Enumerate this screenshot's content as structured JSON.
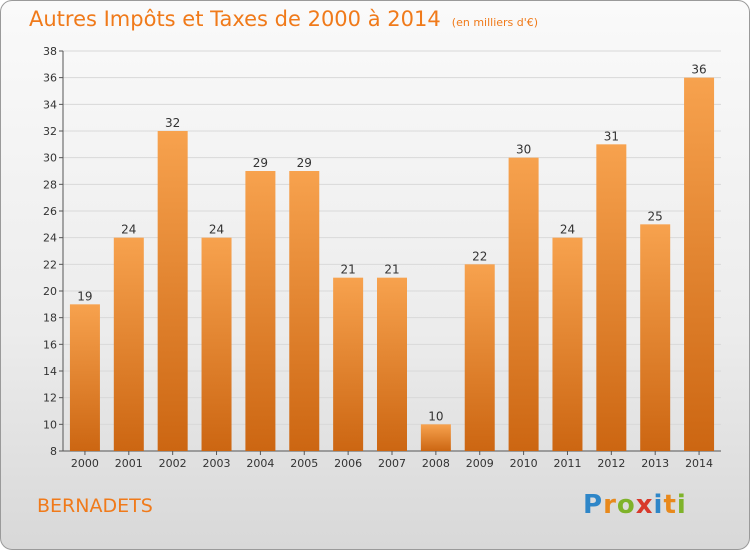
{
  "header": {
    "title": "Autres Impôts et Taxes de 2000 à 2014",
    "subtitle": "(en milliers d'€)"
  },
  "footer": {
    "commune": "BERNADETS",
    "brand": "Proxiti",
    "brand_letters": [
      {
        "ch": "P",
        "color": "#2e86c8"
      },
      {
        "ch": "r",
        "color": "#e8891c"
      },
      {
        "ch": "o",
        "color": "#7fb32a"
      },
      {
        "ch": "x",
        "color": "#d8392b"
      },
      {
        "ch": "i",
        "color": "#2e86c8"
      },
      {
        "ch": "t",
        "color": "#e8891c"
      },
      {
        "ch": "i",
        "color": "#7fb32a"
      }
    ]
  },
  "colors": {
    "accent": "#f07a1a",
    "bar_top": "#f7a24e",
    "bar_bottom": "#cc6612",
    "grid": "#d9d9d9",
    "axis_text": "#333333"
  },
  "chart_data": {
    "type": "bar",
    "title": "Autres Impôts et Taxes de 2000 à 2014",
    "subtitle": "(en milliers d'€)",
    "categories": [
      "2000",
      "2001",
      "2002",
      "2003",
      "2004",
      "2005",
      "2006",
      "2007",
      "2008",
      "2009",
      "2010",
      "2011",
      "2012",
      "2013",
      "2014"
    ],
    "values": [
      19,
      24,
      32,
      24,
      29,
      29,
      21,
      21,
      10,
      22,
      30,
      24,
      31,
      25,
      36
    ],
    "ylim": [
      8,
      38
    ],
    "yticks": [
      8,
      10,
      12,
      14,
      16,
      18,
      20,
      22,
      24,
      26,
      28,
      30,
      32,
      34,
      36,
      38
    ],
    "xlabel": "",
    "ylabel": "",
    "grid": true,
    "data_labels": true
  }
}
